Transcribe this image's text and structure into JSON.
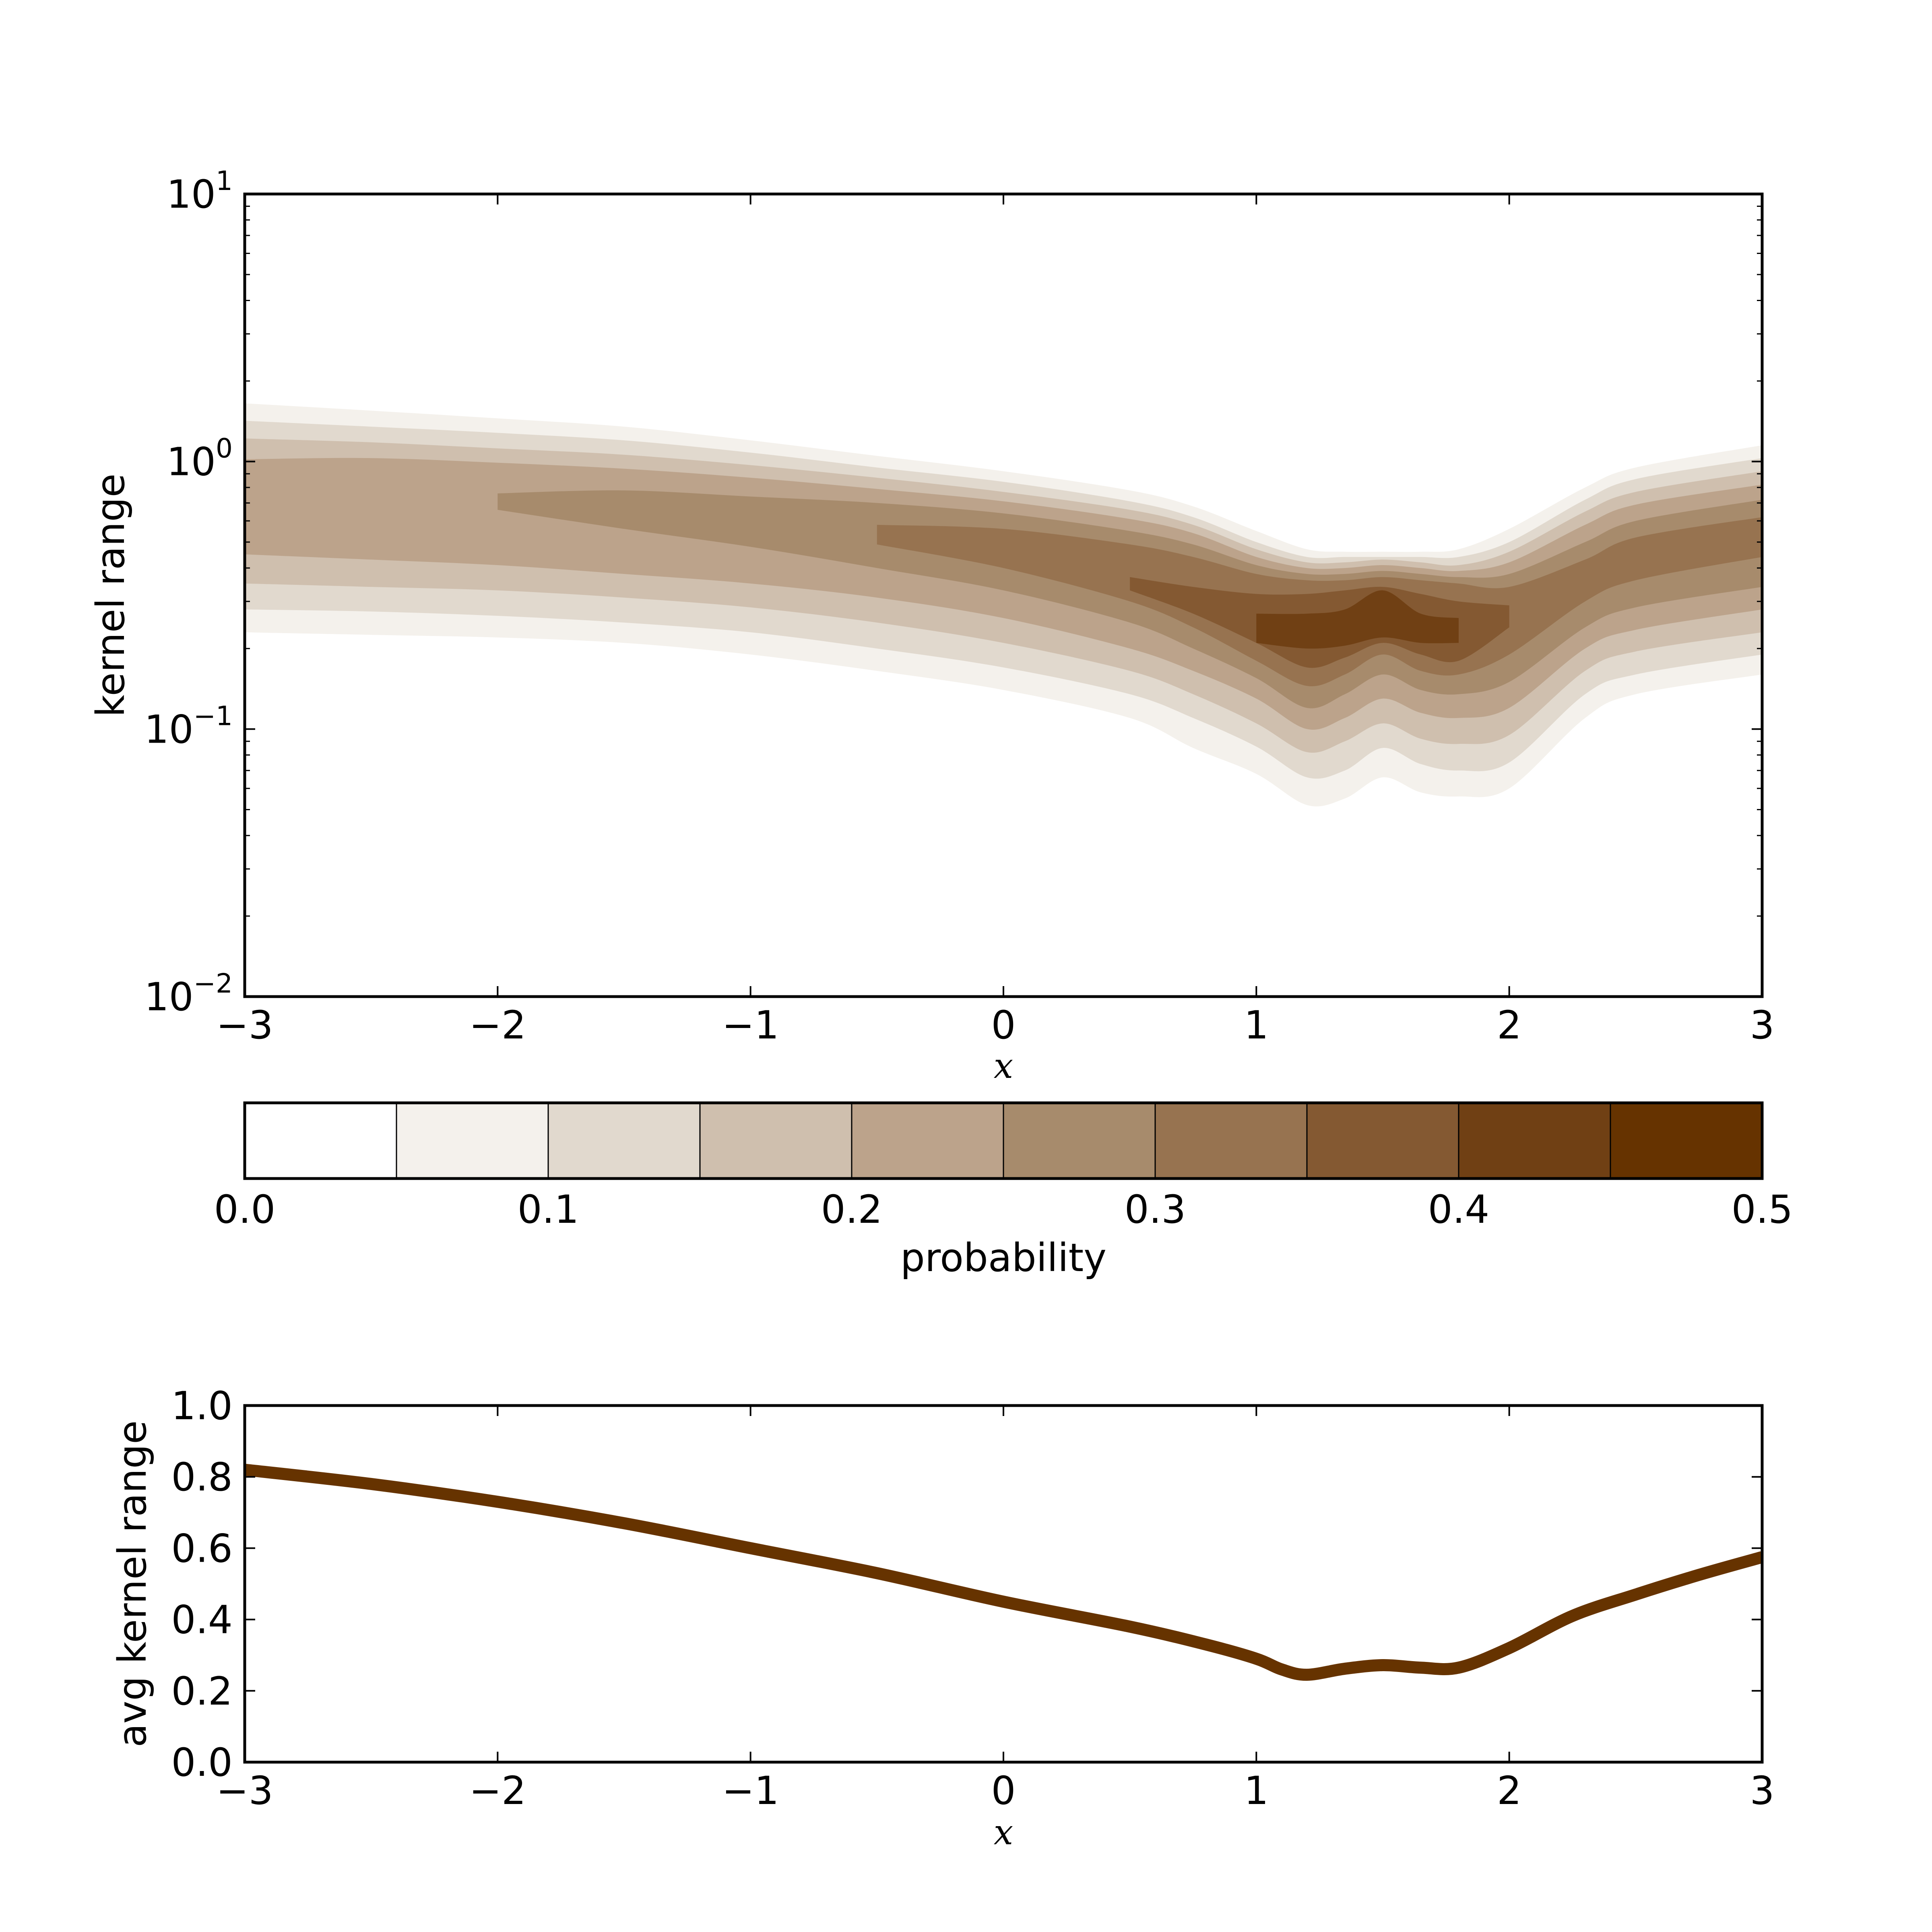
{
  "chart_data": [
    {
      "type": "heatmap",
      "title": "",
      "xlabel": "x",
      "ylabel": "kernel range",
      "xlim": [
        -3,
        3
      ],
      "ylim": [
        0.01,
        10
      ],
      "yscale": "log",
      "grid": false,
      "x_ticks": [
        "−3",
        "−2",
        "−1",
        "0",
        "1",
        "2",
        "3"
      ],
      "x_tick_values": [
        -3,
        -2,
        -1,
        0,
        1,
        2,
        3
      ],
      "y_ticks": [
        {
          "value": 10,
          "base": "10",
          "exp": "1"
        },
        {
          "value": 1,
          "base": "10",
          "exp": "0"
        },
        {
          "value": 0.1,
          "base": "10",
          "exp": "-1"
        },
        {
          "value": 0.01,
          "base": "10",
          "exp": "-2"
        }
      ],
      "x": [
        -3,
        -2.5,
        -2,
        -1.5,
        -1,
        -0.5,
        0,
        0.5,
        0.75,
        1,
        1.2,
        1.35,
        1.5,
        1.65,
        1.8,
        2,
        2.3,
        2.5,
        3
      ],
      "bands": [
        {
          "level": 0.05,
          "color": "#f4f1ec",
          "upper": [
            1.65,
            1.55,
            1.45,
            1.35,
            1.2,
            1.05,
            0.92,
            0.78,
            0.68,
            0.55,
            0.47,
            0.46,
            0.46,
            0.46,
            0.47,
            0.56,
            0.8,
            0.95,
            1.15
          ],
          "lower": [
            0.23,
            0.225,
            0.22,
            0.21,
            0.19,
            0.165,
            0.14,
            0.11,
            0.085,
            0.068,
            0.052,
            0.055,
            0.066,
            0.058,
            0.056,
            0.06,
            0.11,
            0.135,
            0.16
          ]
        },
        {
          "level": 0.1,
          "color": "#e1d9ce",
          "upper": [
            1.42,
            1.35,
            1.28,
            1.2,
            1.08,
            0.95,
            0.84,
            0.71,
            0.62,
            0.5,
            0.44,
            0.44,
            0.44,
            0.44,
            0.44,
            0.5,
            0.72,
            0.86,
            1.03
          ],
          "lower": [
            0.28,
            0.275,
            0.265,
            0.25,
            0.23,
            0.2,
            0.17,
            0.135,
            0.11,
            0.086,
            0.066,
            0.07,
            0.085,
            0.074,
            0.07,
            0.075,
            0.135,
            0.16,
            0.19
          ]
        },
        {
          "level": 0.15,
          "color": "#cfbfae",
          "upper": [
            1.22,
            1.18,
            1.12,
            1.06,
            0.97,
            0.87,
            0.77,
            0.66,
            0.58,
            0.47,
            0.42,
            0.42,
            0.43,
            0.42,
            0.41,
            0.46,
            0.65,
            0.77,
            0.92
          ],
          "lower": [
            0.35,
            0.34,
            0.33,
            0.31,
            0.285,
            0.25,
            0.21,
            0.165,
            0.135,
            0.105,
            0.082,
            0.09,
            0.105,
            0.092,
            0.088,
            0.095,
            0.165,
            0.195,
            0.23
          ]
        },
        {
          "level": 0.2,
          "color": "#bca38b",
          "upper": [
            1.02,
            1.03,
            0.99,
            0.94,
            0.87,
            0.79,
            0.71,
            0.61,
            0.54,
            0.44,
            0.4,
            0.4,
            0.41,
            0.4,
            0.39,
            0.42,
            0.58,
            0.69,
            0.82
          ],
          "lower": [
            0.45,
            0.43,
            0.41,
            0.38,
            0.35,
            0.31,
            0.26,
            0.2,
            0.165,
            0.13,
            0.1,
            0.11,
            0.13,
            0.115,
            0.11,
            0.12,
            0.2,
            0.235,
            0.28
          ]
        },
        {
          "level": 0.25,
          "color": "#a78b6c",
          "upper": [
            null,
            null,
            0.76,
            0.78,
            0.74,
            0.7,
            0.64,
            0.55,
            0.49,
            0.41,
            0.38,
            0.38,
            0.39,
            0.38,
            0.37,
            0.38,
            0.5,
            0.6,
            0.72
          ],
          "lower": [
            null,
            null,
            0.66,
            0.56,
            0.48,
            0.4,
            0.33,
            0.25,
            0.2,
            0.155,
            0.12,
            0.135,
            0.16,
            0.14,
            0.135,
            0.15,
            0.24,
            0.285,
            0.34
          ]
        },
        {
          "level": 0.3,
          "color": "#977350",
          "upper": [
            null,
            null,
            null,
            null,
            null,
            0.58,
            0.56,
            0.49,
            0.44,
            0.38,
            0.36,
            0.36,
            0.37,
            0.36,
            0.35,
            0.34,
            0.43,
            0.52,
            0.62
          ],
          "lower": [
            null,
            null,
            null,
            null,
            null,
            0.49,
            0.4,
            0.3,
            0.24,
            0.18,
            0.145,
            0.16,
            0.19,
            0.165,
            0.16,
            0.19,
            0.3,
            0.36,
            0.44
          ]
        },
        {
          "level": 0.35,
          "color": "#845932",
          "upper": [
            null,
            null,
            null,
            null,
            null,
            null,
            null,
            0.37,
            0.34,
            0.32,
            0.32,
            0.33,
            0.34,
            0.32,
            0.3,
            0.29,
            null,
            null,
            null
          ],
          "lower": [
            null,
            null,
            null,
            null,
            null,
            null,
            null,
            0.33,
            0.27,
            0.21,
            0.17,
            0.185,
            0.21,
            0.19,
            0.18,
            0.24,
            null,
            null,
            null
          ]
        },
        {
          "level": 0.4,
          "color": "#704014",
          "upper": [
            null,
            null,
            null,
            null,
            null,
            null,
            null,
            null,
            null,
            0.27,
            0.27,
            0.28,
            0.33,
            0.27,
            0.26,
            null,
            null,
            null,
            null
          ],
          "lower": [
            null,
            null,
            null,
            null,
            null,
            null,
            null,
            null,
            null,
            0.21,
            0.2,
            0.205,
            0.22,
            0.21,
            0.21,
            null,
            null,
            null,
            null
          ]
        }
      ]
    },
    {
      "type": "colorbar",
      "label": "probability",
      "boundaries": [
        0.0,
        0.05,
        0.1,
        0.15,
        0.2,
        0.25,
        0.3,
        0.35,
        0.4,
        0.45,
        0.5
      ],
      "colors": [
        "#ffffff",
        "#f4f1ec",
        "#e1d9ce",
        "#cfbfae",
        "#bca38b",
        "#a78b6c",
        "#977350",
        "#845932",
        "#704014",
        "#663300"
      ],
      "ticks": [
        "0.0",
        "0.1",
        "0.2",
        "0.3",
        "0.4",
        "0.5"
      ],
      "tick_values": [
        0.0,
        0.1,
        0.2,
        0.3,
        0.4,
        0.5
      ]
    },
    {
      "type": "line",
      "title": "",
      "xlabel": "x",
      "ylabel": "avg kernel range",
      "xlim": [
        -3,
        3
      ],
      "ylim": [
        0.0,
        1.0
      ],
      "grid": false,
      "line_color": "#663300",
      "x_ticks": [
        "−3",
        "−2",
        "−1",
        "0",
        "1",
        "2",
        "3"
      ],
      "x_tick_values": [
        -3,
        -2,
        -1,
        0,
        1,
        2,
        3
      ],
      "y_ticks": [
        "0.0",
        "0.2",
        "0.4",
        "0.6",
        "0.8",
        "1.0"
      ],
      "y_tick_values": [
        0.0,
        0.2,
        0.4,
        0.6,
        0.8,
        1.0
      ],
      "x": [
        -3,
        -2.5,
        -2,
        -1.5,
        -1,
        -0.5,
        0,
        0.5,
        0.8,
        1,
        1.1,
        1.2,
        1.35,
        1.5,
        1.65,
        1.8,
        2,
        2.25,
        2.5,
        2.75,
        3
      ],
      "y": [
        0.82,
        0.78,
        0.73,
        0.67,
        0.6,
        0.53,
        0.45,
        0.38,
        0.33,
        0.29,
        0.26,
        0.245,
        0.262,
        0.272,
        0.265,
        0.265,
        0.32,
        0.41,
        0.47,
        0.525,
        0.575
      ]
    }
  ]
}
